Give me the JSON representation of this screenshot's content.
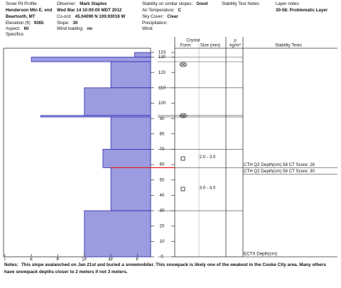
{
  "header": {
    "columns": [
      [
        {
          "label": "Snow Pit Profile"
        },
        {
          "value": "Henderson Mtn E. end"
        },
        {
          "value": "Beartooth, MT"
        },
        {
          "label": "Elevation (ft)",
          "value": "9365"
        },
        {
          "label": "Aspect:",
          "value": "60"
        },
        {
          "label": "Specifics:"
        }
      ],
      [
        {
          "label": "Observer:",
          "value": "Mark Staples"
        },
        {
          "value": "Wed Mar 14 10:00:00 MDT 2012"
        },
        {
          "label": "Co-ord:",
          "value": "45.04090 N 109.93018 W"
        },
        {
          "label": "Slope:",
          "value": "30"
        },
        {
          "label": "Wind loading:",
          "value": "no"
        }
      ],
      [
        {
          "label": "Stability on similar slopes:",
          "value": "Good"
        },
        {
          "label": "Air Temperature:",
          "value": "C"
        },
        {
          "label": "Sky Cover:",
          "value": "Clear"
        },
        {
          "label": "Precipitation:"
        },
        {
          "label": "Wind:"
        }
      ],
      [
        {
          "label": "Stability Test Notes:"
        }
      ],
      [
        {
          "label": "Layer notes:"
        },
        {
          "value": "30-58: Problematic Layer"
        }
      ]
    ]
  },
  "chart_data": {
    "type": "snow-profile",
    "column_headers": {
      "crystal": "Crystal",
      "form": "Form",
      "size": "Size (mm)",
      "density": "ρ",
      "density_unit": "kg/m³",
      "stability": "Stability Tests"
    },
    "hardness_ticks": [
      {
        "value": 0,
        "label": "I"
      },
      {
        "value": 1,
        "label": "K"
      },
      {
        "value": 2,
        "label": "P"
      },
      {
        "value": 3,
        "label": "1F"
      },
      {
        "value": 4,
        "label": "4F"
      },
      {
        "value": 5,
        "label": "F"
      }
    ],
    "hardness_lim": [
      -0.05,
      5.5
    ],
    "height_lim": [
      0,
      133
    ],
    "height_ticks": [
      133,
      130,
      120,
      110,
      100,
      90,
      80,
      70,
      60,
      50,
      40,
      30,
      20,
      10,
      0
    ],
    "bar_color": "#9b9be0",
    "bar_edge": "#2b2bb0",
    "layers": [
      {
        "top": 133,
        "bottom": 130,
        "hardness": 4.9
      },
      {
        "top": 130,
        "bottom": 127,
        "hardness": 1
      },
      {
        "top": 127,
        "bottom": 110,
        "hardness": 4
      },
      {
        "top": 110,
        "bottom": 92,
        "hardness": 3
      },
      {
        "top": 92,
        "bottom": 91,
        "hardness": 1.35
      },
      {
        "top": 91,
        "bottom": 70,
        "hardness": 4
      },
      {
        "top": 70,
        "bottom": 58,
        "hardness": 3.7,
        "size": "2.0 - 3.0"
      },
      {
        "top": 58,
        "bottom": 30,
        "hardness": 4,
        "size": "3.0 - 4.0"
      },
      {
        "top": 30,
        "bottom": 0,
        "hardness": 3
      }
    ],
    "layer_of_concern": [
      30,
      58
    ],
    "concern_color": "#e02020",
    "stability_tests": [
      "CTH Q2 Depth(cm) 58 CT Score: 26",
      "CTH Q2 Depth(cm) 58 CT Score: 30",
      "ECTX  Depth(cm)"
    ]
  },
  "notes": {
    "label": "Notes:",
    "text": "This slope avalanched on Jan 21st and buried a snowmobiler.  This snowpack is likely one of the weakest in the Cooke City area.  Many others have snowpack depths closer to 2 meters if not 3 meters."
  }
}
